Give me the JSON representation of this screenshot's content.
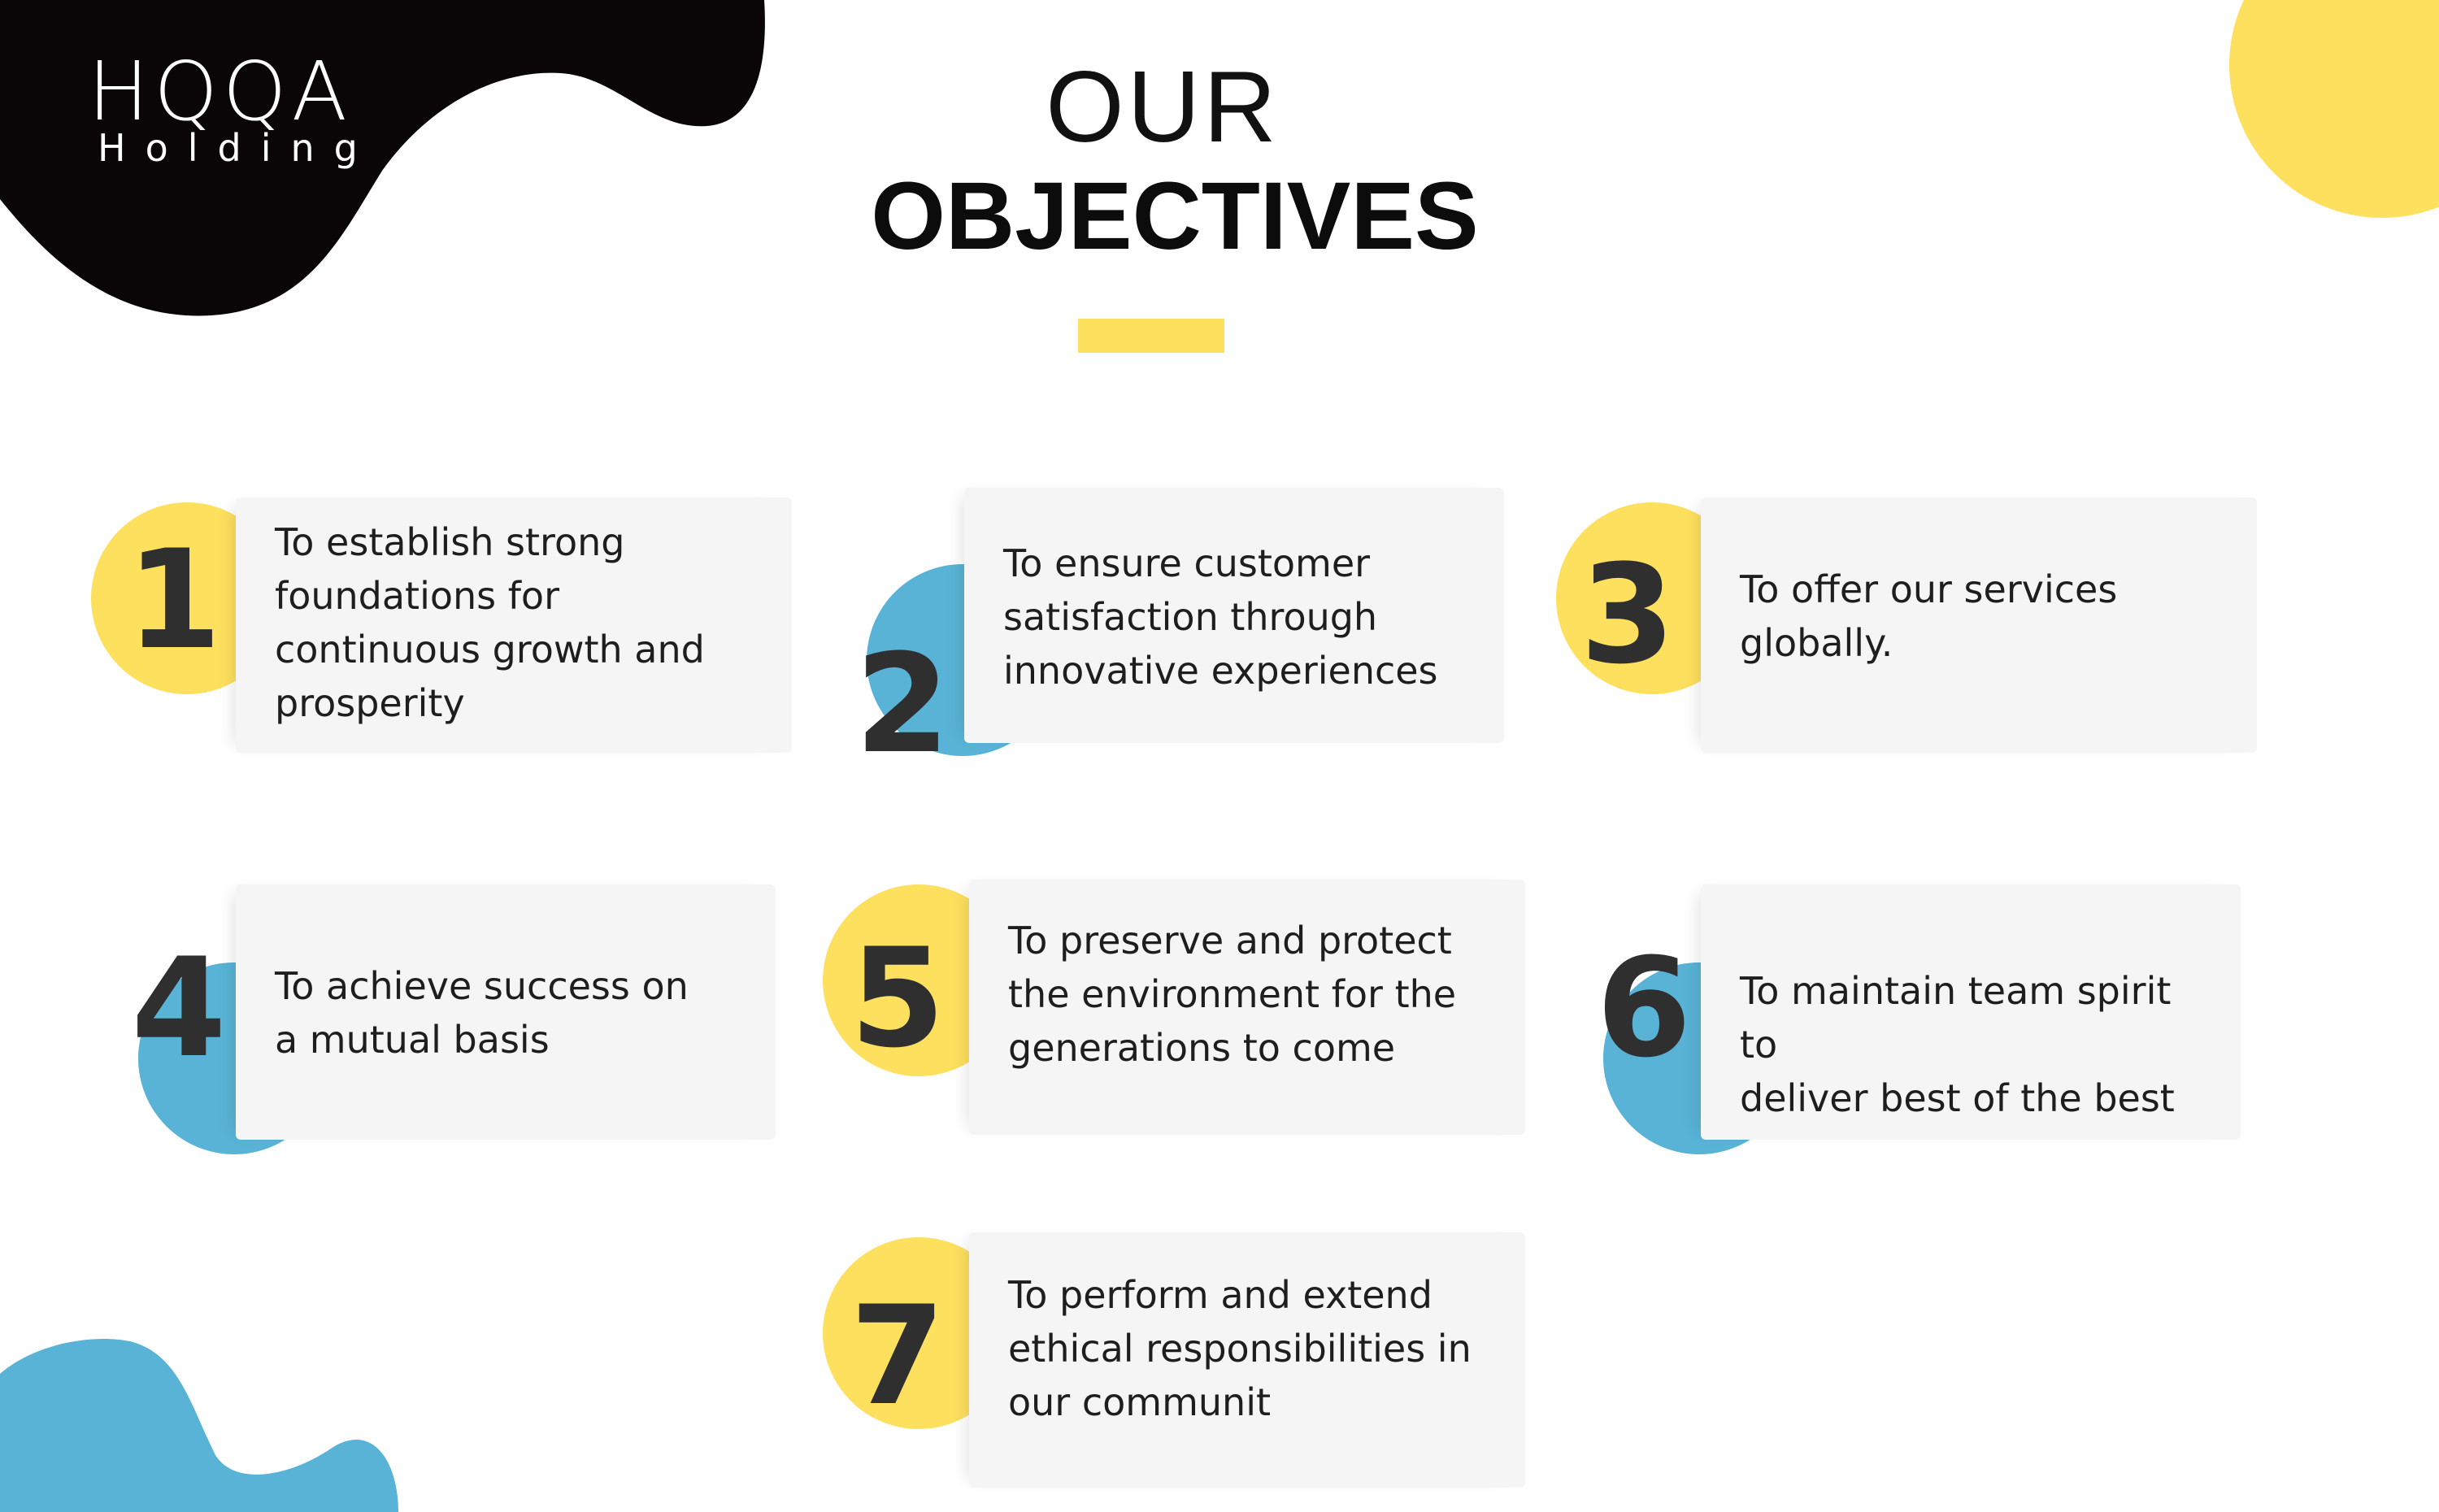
{
  "brand": {
    "logo_text": "HQQA",
    "logo_subtitle": "Holding"
  },
  "heading": {
    "line1": "OUR",
    "line2": "OBJECTIVES"
  },
  "colors": {
    "yellow": "#fde05e",
    "blue": "#58b3d6",
    "black": "#0a0507",
    "card": "#f5f5f5"
  },
  "objectives": [
    {
      "number": "1",
      "text": "To establish strong\nfoundations for\ncontinuous growth and\nprosperity",
      "circle_color": "yellow"
    },
    {
      "number": "2",
      "text": "To ensure customer\nsatisfaction through\ninnovative experiences",
      "circle_color": "blue"
    },
    {
      "number": "3",
      "text": "To offer our services\nglobally.",
      "circle_color": "yellow"
    },
    {
      "number": "4",
      "text": "To achieve success on\na mutual basis",
      "circle_color": "blue"
    },
    {
      "number": "5",
      "text": "To preserve and protect\nthe environment for the\ngenerations to come",
      "circle_color": "yellow"
    },
    {
      "number": "6",
      "text": "To maintain team spirit to\ndeliver best of the best",
      "circle_color": "blue"
    },
    {
      "number": "7",
      "text": "To perform and extend\nethical responsibilities in\nour communit",
      "circle_color": "yellow"
    }
  ]
}
